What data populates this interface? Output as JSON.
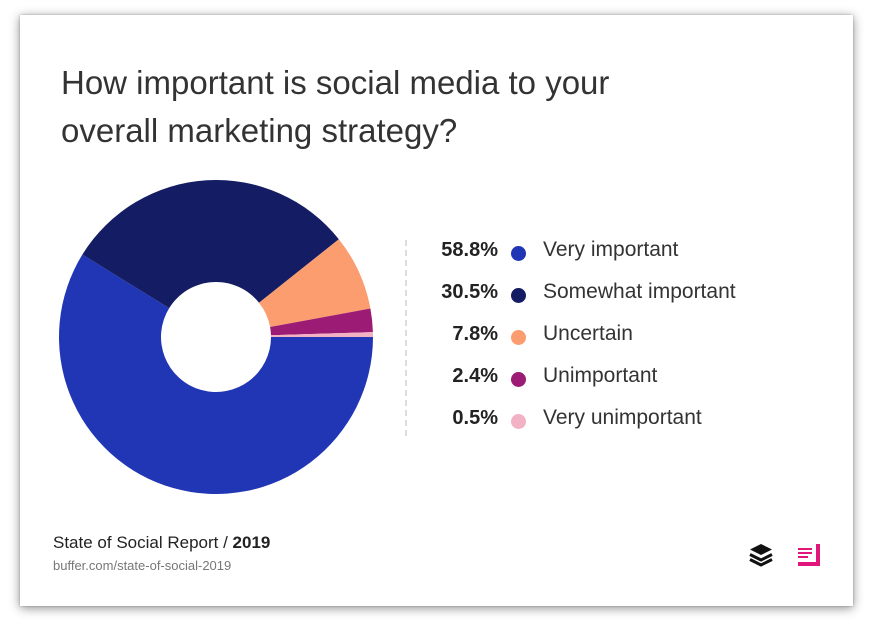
{
  "title": {
    "line1": "How important is social media to your",
    "line2": "overall marketing strategy?"
  },
  "chart_data": {
    "type": "pie",
    "style": "donut",
    "legend_position": "right",
    "slices": [
      {
        "label": "Very important",
        "value": 58.8,
        "display": "58.8%",
        "color": "#2136b4"
      },
      {
        "label": "Somewhat important",
        "value": 30.5,
        "display": "30.5%",
        "color": "#141d63"
      },
      {
        "label": "Uncertain",
        "value": 7.8,
        "display": "7.8%",
        "color": "#fb9d6e"
      },
      {
        "label": "Unimportant",
        "value": 2.4,
        "display": "2.4%",
        "color": "#9c1b74"
      },
      {
        "label": "Very unimportant",
        "value": 0.5,
        "display": "0.5%",
        "color": "#f3b1c4"
      }
    ]
  },
  "footer": {
    "source_prefix": "State of Social Report / ",
    "source_year": "2019",
    "url": "buffer.com/state-of-social-2019"
  },
  "logos": {
    "buffer": "buffer-logo-icon",
    "brand": "brand-logo-icon"
  }
}
